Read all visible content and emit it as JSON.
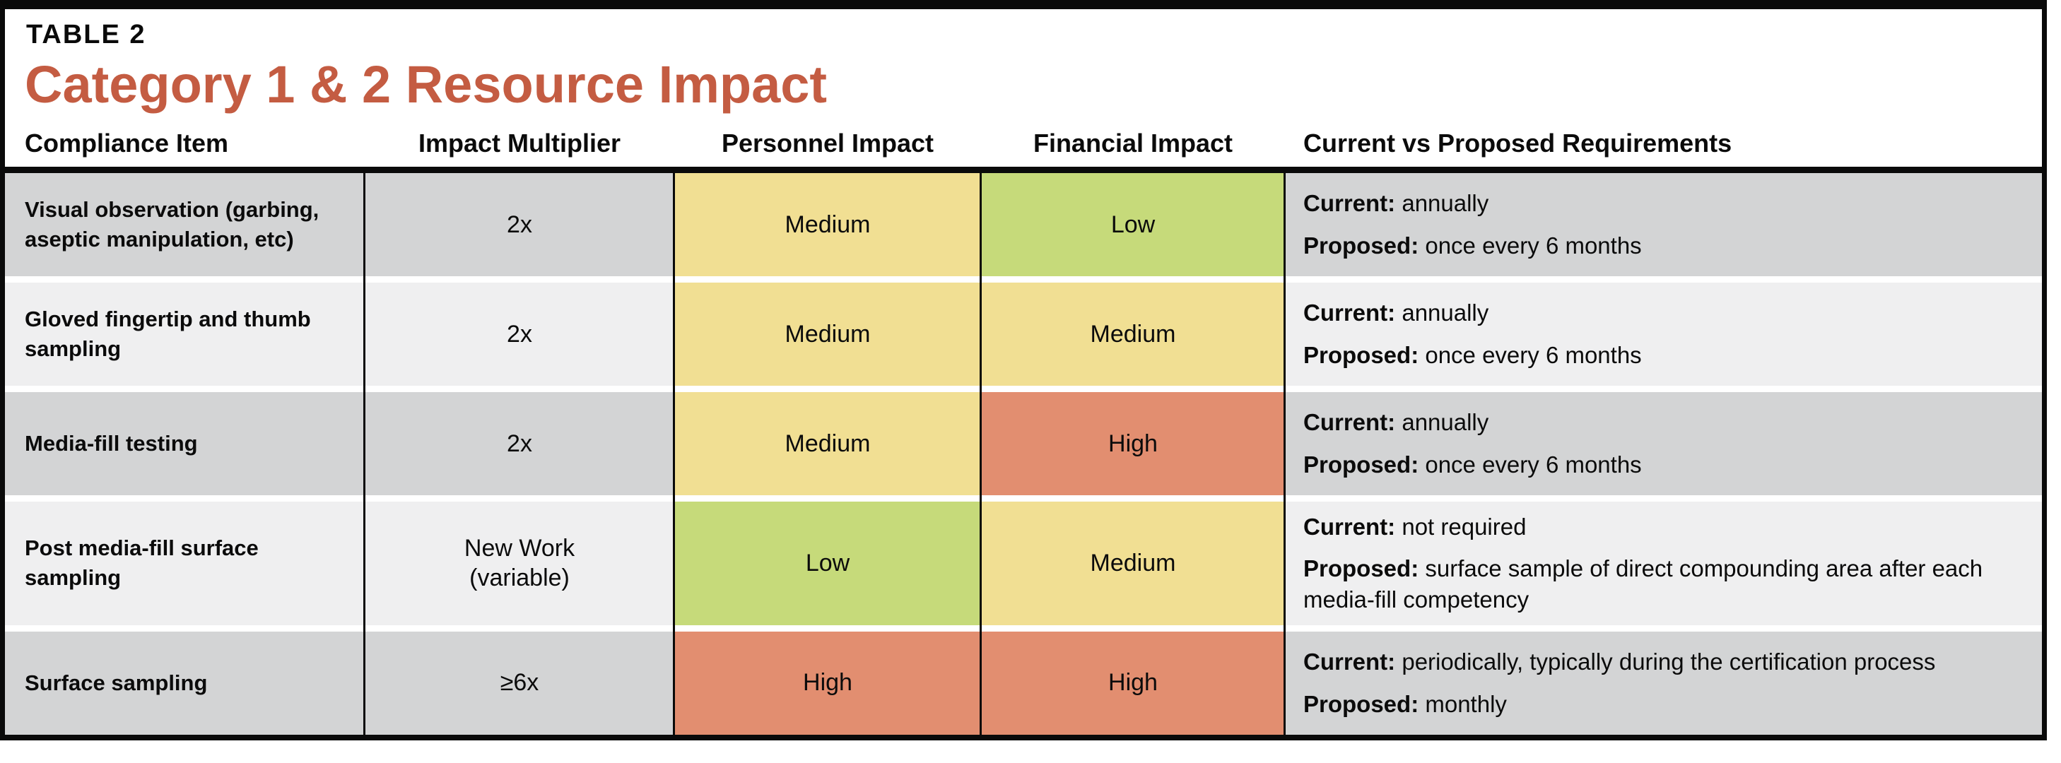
{
  "table": {
    "tag": "TABLE 2",
    "title": "Category 1 & 2 Resource Impact",
    "title_color": "#c45c42",
    "columns": [
      "Compliance Item",
      "Impact Multiplier",
      "Personnel Impact",
      "Financial Impact",
      "Current vs Proposed Requirements"
    ],
    "labels": {
      "current": "Current:",
      "proposed": "Proposed:"
    },
    "impact_colors": {
      "Low": "#c6da7a",
      "Medium": "#f1df93",
      "High": "#e28e70"
    },
    "row_colors": {
      "odd": "#d3d4d5",
      "even": "#efeff0"
    },
    "rows": [
      {
        "item": "Visual observation (garbing, aseptic manipulation, etc)",
        "multiplier": "2x",
        "personnel": "Medium",
        "financial": "Low",
        "current": "annually",
        "proposed": "once every 6 months"
      },
      {
        "item": "Gloved fingertip and thumb sampling",
        "multiplier": "2x",
        "personnel": "Medium",
        "financial": "Medium",
        "current": "annually",
        "proposed": "once every 6 months"
      },
      {
        "item": "Media-fill testing",
        "multiplier": "2x",
        "personnel": "Medium",
        "financial": "High",
        "current": "annually",
        "proposed": "once every 6 months"
      },
      {
        "item": "Post media-fill surface sampling",
        "multiplier": "New Work (variable)",
        "personnel": "Low",
        "financial": "Medium",
        "current": "not required",
        "proposed": "surface sample of direct compounding area after each media-fill competency"
      },
      {
        "item": "Surface sampling",
        "multiplier": "≥6x",
        "personnel": "High",
        "financial": "High",
        "current": "periodically, typically during the certification process",
        "proposed": "monthly"
      }
    ]
  }
}
